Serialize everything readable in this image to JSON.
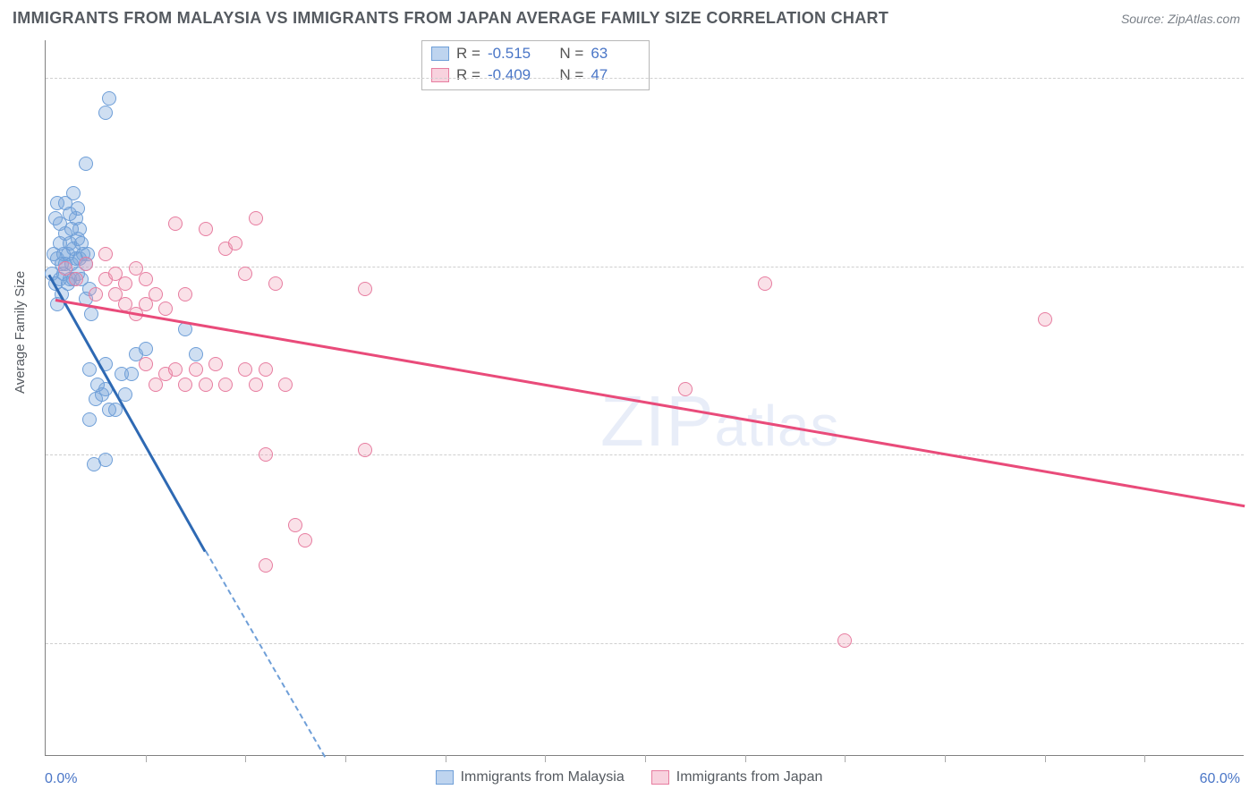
{
  "title": "IMMIGRANTS FROM MALAYSIA VS IMMIGRANTS FROM JAPAN AVERAGE FAMILY SIZE CORRELATION CHART",
  "source": "Source: ZipAtlas.com",
  "watermark": "ZIPatlas",
  "ylabel": "Average Family Size",
  "chart": {
    "type": "scatter",
    "xlim": [
      0.0,
      60.0
    ],
    "ylim": [
      1.3,
      4.15
    ],
    "x_unit": "%",
    "xmin_label": "0.0%",
    "xmax_label": "60.0%",
    "yticks": [
      1.75,
      2.5,
      3.25,
      4.0
    ],
    "ytick_labels": [
      "1.75",
      "2.50",
      "3.25",
      "4.00"
    ],
    "xticks": [
      5,
      10,
      15,
      20,
      25,
      30,
      35,
      40,
      45,
      50,
      55
    ],
    "grid_color": "#cfcfcf",
    "axis_color": "#808080",
    "background_color": "#ffffff",
    "tick_label_color": "#4a76c7",
    "marker_radius": 8,
    "marker_border_width": 1.5,
    "series": [
      {
        "name": "Immigrants from Malaysia",
        "color_fill": "rgba(117,162,219,0.35)",
        "color_stroke": "#6f9fd8",
        "swatch_fill": "#bed4ef",
        "swatch_border": "#6f9fd8",
        "R": "-0.515",
        "N": "63",
        "trend": {
          "x1": 0.2,
          "y1": 3.22,
          "x2_solid": 8.0,
          "y2_solid": 2.12,
          "x2_dash": 16.0,
          "y2_dash": 1.02,
          "color": "#2e69b3",
          "width": 2.5
        },
        "points": [
          [
            0.3,
            3.22
          ],
          [
            0.4,
            3.3
          ],
          [
            0.5,
            3.18
          ],
          [
            0.6,
            3.28
          ],
          [
            0.6,
            3.1
          ],
          [
            0.7,
            3.34
          ],
          [
            0.7,
            3.2
          ],
          [
            0.8,
            3.26
          ],
          [
            0.8,
            3.14
          ],
          [
            0.9,
            3.3
          ],
          [
            0.9,
            3.22
          ],
          [
            1.0,
            3.38
          ],
          [
            1.0,
            3.26
          ],
          [
            1.1,
            3.3
          ],
          [
            1.1,
            3.18
          ],
          [
            1.2,
            3.34
          ],
          [
            1.2,
            3.2
          ],
          [
            1.3,
            3.4
          ],
          [
            1.3,
            3.26
          ],
          [
            1.4,
            3.32
          ],
          [
            1.4,
            3.2
          ],
          [
            1.5,
            3.44
          ],
          [
            1.5,
            3.28
          ],
          [
            1.6,
            3.36
          ],
          [
            1.6,
            3.22
          ],
          [
            1.7,
            3.4
          ],
          [
            1.7,
            3.28
          ],
          [
            1.8,
            3.34
          ],
          [
            1.8,
            3.2
          ],
          [
            1.9,
            3.3
          ],
          [
            2.0,
            3.26
          ],
          [
            2.0,
            3.12
          ],
          [
            2.1,
            3.3
          ],
          [
            2.2,
            3.16
          ],
          [
            2.3,
            3.06
          ],
          [
            0.5,
            3.44
          ],
          [
            0.6,
            3.5
          ],
          [
            0.7,
            3.42
          ],
          [
            1.0,
            3.5
          ],
          [
            1.2,
            3.46
          ],
          [
            1.4,
            3.54
          ],
          [
            1.6,
            3.48
          ],
          [
            3.0,
            3.86
          ],
          [
            3.2,
            3.92
          ],
          [
            2.0,
            3.66
          ],
          [
            4.5,
            2.9
          ],
          [
            2.5,
            2.72
          ],
          [
            2.2,
            2.64
          ],
          [
            3.0,
            2.76
          ],
          [
            3.2,
            2.68
          ],
          [
            2.8,
            2.74
          ],
          [
            3.5,
            2.68
          ],
          [
            3.0,
            2.86
          ],
          [
            2.2,
            2.84
          ],
          [
            2.6,
            2.78
          ],
          [
            2.4,
            2.46
          ],
          [
            3.0,
            2.48
          ],
          [
            3.8,
            2.82
          ],
          [
            4.0,
            2.74
          ],
          [
            4.3,
            2.82
          ],
          [
            5.0,
            2.92
          ],
          [
            7.0,
            3.0
          ],
          [
            7.5,
            2.9
          ]
        ]
      },
      {
        "name": "Immigrants from Japan",
        "color_fill": "rgba(240,155,180,0.30)",
        "color_stroke": "#e77da0",
        "swatch_fill": "#f8d2de",
        "swatch_border": "#e77da0",
        "R": "-0.409",
        "N": "47",
        "trend": {
          "x1": 0.5,
          "y1": 3.12,
          "x2_solid": 60.0,
          "y2_solid": 2.3,
          "x2_dash": 60.0,
          "y2_dash": 2.3,
          "color": "#e94b7a",
          "width": 2.5
        },
        "points": [
          [
            1.0,
            3.24
          ],
          [
            1.5,
            3.2
          ],
          [
            2.0,
            3.26
          ],
          [
            2.5,
            3.14
          ],
          [
            3.0,
            3.2
          ],
          [
            3.0,
            3.3
          ],
          [
            3.5,
            3.14
          ],
          [
            3.5,
            3.22
          ],
          [
            4.0,
            3.18
          ],
          [
            4.0,
            3.1
          ],
          [
            4.5,
            3.24
          ],
          [
            4.5,
            3.06
          ],
          [
            5.0,
            3.2
          ],
          [
            5.0,
            3.1
          ],
          [
            5.0,
            2.86
          ],
          [
            5.5,
            3.14
          ],
          [
            5.5,
            2.78
          ],
          [
            6.0,
            3.08
          ],
          [
            6.0,
            2.82
          ],
          [
            6.5,
            3.42
          ],
          [
            6.5,
            2.84
          ],
          [
            7.0,
            3.14
          ],
          [
            7.0,
            2.78
          ],
          [
            7.5,
            2.84
          ],
          [
            8.0,
            3.4
          ],
          [
            8.0,
            2.78
          ],
          [
            8.5,
            2.86
          ],
          [
            9.0,
            3.32
          ],
          [
            9.0,
            2.78
          ],
          [
            9.5,
            3.34
          ],
          [
            10.0,
            2.84
          ],
          [
            10.0,
            3.22
          ],
          [
            10.5,
            2.78
          ],
          [
            11.0,
            2.84
          ],
          [
            11.0,
            2.5
          ],
          [
            11.5,
            3.18
          ],
          [
            12.0,
            2.78
          ],
          [
            12.5,
            2.22
          ],
          [
            13.0,
            2.16
          ],
          [
            16.0,
            3.16
          ],
          [
            16.0,
            2.52
          ],
          [
            32.0,
            2.76
          ],
          [
            36.0,
            3.18
          ],
          [
            40.0,
            1.76
          ],
          [
            50.0,
            3.04
          ],
          [
            11.0,
            2.06
          ],
          [
            10.5,
            3.44
          ]
        ]
      }
    ]
  },
  "stat_labels": {
    "R": "R =",
    "N": "N ="
  },
  "legend": {
    "items": [
      {
        "label": "Immigrants from Malaysia",
        "series_idx": 0
      },
      {
        "label": "Immigrants from Japan",
        "series_idx": 1
      }
    ]
  }
}
